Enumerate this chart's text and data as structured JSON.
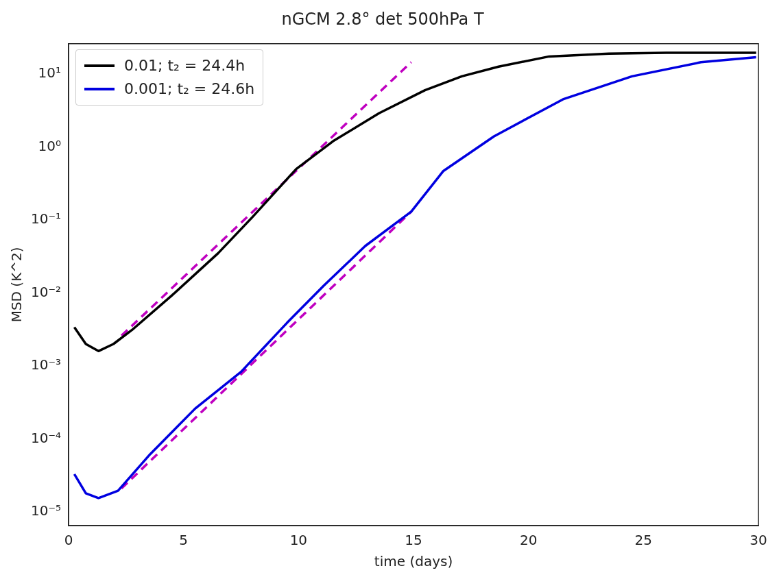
{
  "chart_data": {
    "type": "line",
    "title": "nGCM 2.8° det 500hPa T",
    "xlabel": "time (days)",
    "ylabel": "MSD (K^2)",
    "xlim": [
      0,
      30
    ],
    "xticks": [
      0,
      5,
      10,
      15,
      20,
      25,
      30
    ],
    "ylim": [
      6.5e-06,
      26
    ],
    "yticks": [
      {
        "value": 1e-05,
        "label": "10⁻⁵"
      },
      {
        "value": 0.0001,
        "label": "10⁻⁴"
      },
      {
        "value": 0.001,
        "label": "10⁻³"
      },
      {
        "value": 0.01,
        "label": "10⁻²"
      },
      {
        "value": 0.1,
        "label": "10⁻¹"
      },
      {
        "value": 1,
        "label": "10⁰"
      },
      {
        "value": 10,
        "label": "10¹"
      }
    ],
    "log": "y",
    "grid": false,
    "legend": "top left",
    "marker": "none",
    "series": [
      {
        "name": "0.01; t₂ = 24.4h",
        "color": "#000000",
        "x": [
          0.25,
          0.75,
          1.3,
          1.95,
          2.75,
          4.5,
          6.5,
          8,
          9.9,
          11.5,
          13.5,
          15.5,
          17.1,
          18.7,
          20.9,
          23.5,
          26,
          29.9
        ],
        "values": [
          0.0034,
          0.002,
          0.0016,
          0.002,
          0.0031,
          0.0093,
          0.035,
          0.11,
          0.5,
          1.2,
          2.9,
          6,
          9.3,
          12.6,
          17.4,
          19,
          19.5,
          19.5
        ]
      },
      {
        "name": "0.001; t₂ = 24.6h",
        "color": "#0000e0",
        "x": [
          0.25,
          0.75,
          1.3,
          2.15,
          3.55,
          5.5,
          7.5,
          9.5,
          11.1,
          12.9,
          14.9,
          16.3,
          18.5,
          21.5,
          24.5,
          27.5,
          29.9
        ],
        "values": [
          3.3e-05,
          1.8e-05,
          1.55e-05,
          1.95e-05,
          6.2e-05,
          0.00026,
          0.00083,
          0.0039,
          0.0126,
          0.044,
          0.13,
          0.47,
          1.4,
          4.5,
          9.3,
          14.5,
          17
        ]
      },
      {
        "type": "line",
        "line_style": "dashed",
        "color": "#c000c0",
        "x": [
          2.3,
          14.9
        ],
        "values": [
          0.0026,
          14.5
        ]
      },
      {
        "type": "line",
        "line_style": "dashed",
        "color": "#c000c0",
        "x": [
          2.3,
          14.9
        ],
        "values": [
          2.1e-05,
          0.13
        ]
      }
    ]
  }
}
